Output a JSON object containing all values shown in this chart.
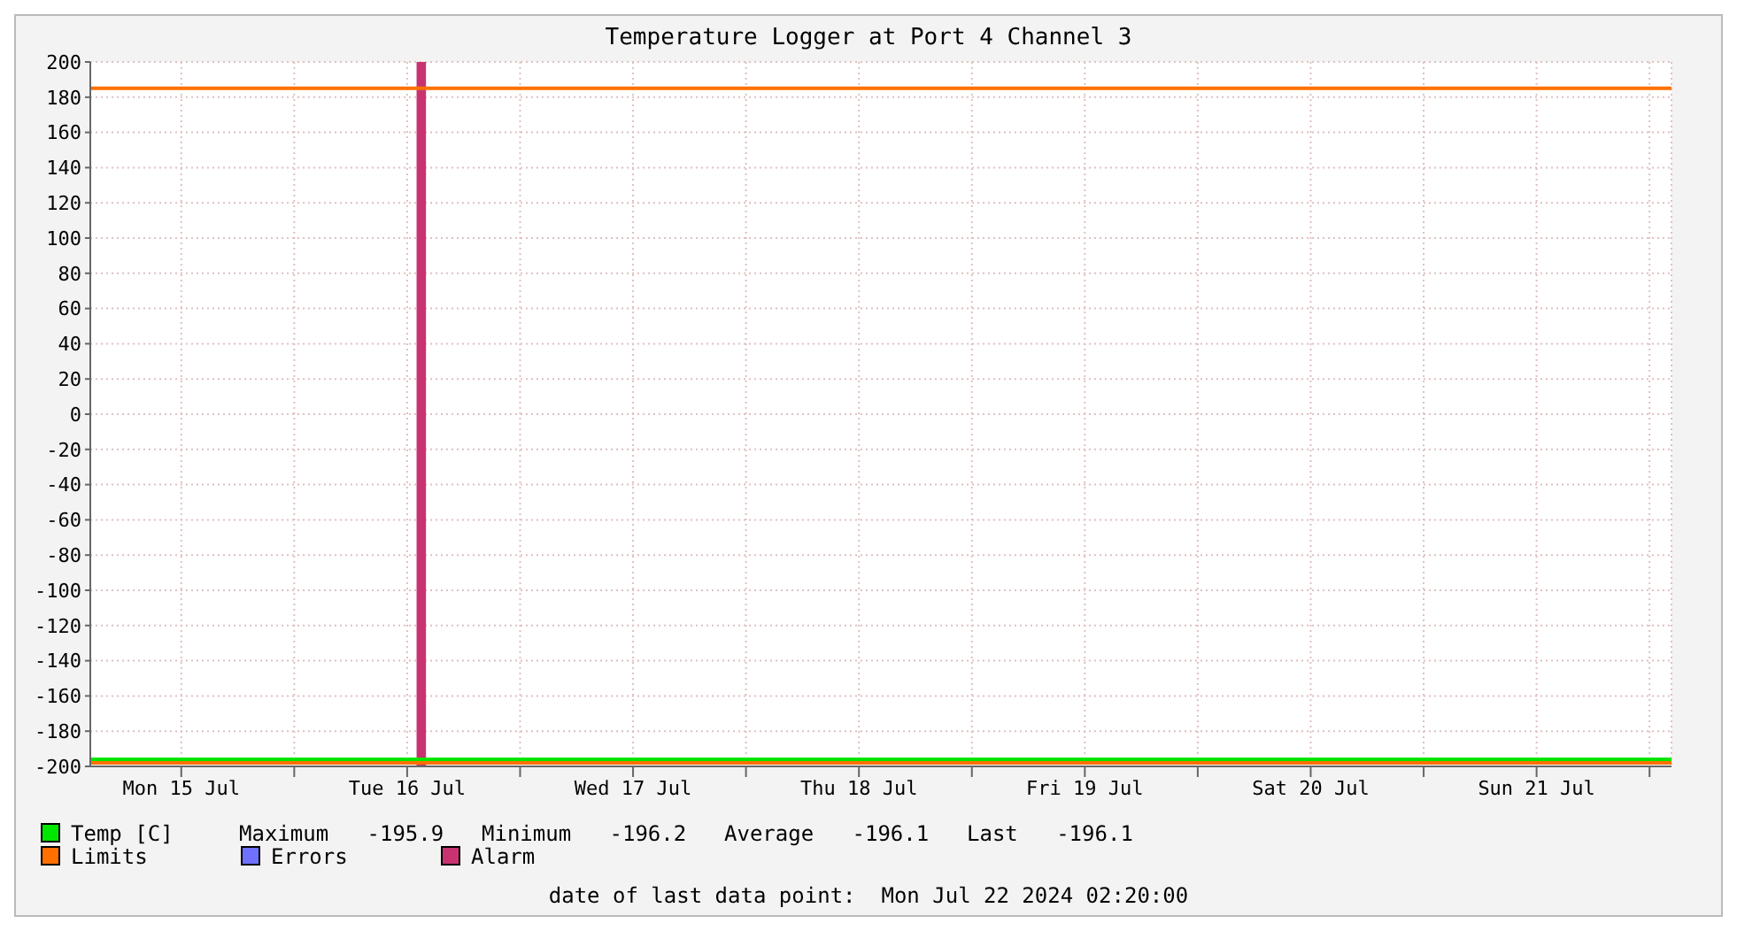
{
  "chart_data": {
    "type": "line",
    "title": "Temperature Logger at Port 4 Channel 3",
    "xlim": [
      "2024-07-15T02:20",
      "2024-07-22T02:20"
    ],
    "xticks": [
      {
        "value": "2024-07-15T12:00",
        "label": "Mon 15 Jul"
      },
      {
        "value": "2024-07-16T00:00",
        "label": null
      },
      {
        "value": "2024-07-16T12:00",
        "label": "Tue 16 Jul"
      },
      {
        "value": "2024-07-17T00:00",
        "label": null
      },
      {
        "value": "2024-07-17T12:00",
        "label": "Wed 17 Jul"
      },
      {
        "value": "2024-07-18T00:00",
        "label": null
      },
      {
        "value": "2024-07-18T12:00",
        "label": "Thu 18 Jul"
      },
      {
        "value": "2024-07-19T00:00",
        "label": null
      },
      {
        "value": "2024-07-19T12:00",
        "label": "Fri 19 Jul"
      },
      {
        "value": "2024-07-20T00:00",
        "label": null
      },
      {
        "value": "2024-07-20T12:00",
        "label": "Sat 20 Jul"
      },
      {
        "value": "2024-07-21T00:00",
        "label": null
      },
      {
        "value": "2024-07-21T12:00",
        "label": "Sun 21 Jul"
      },
      {
        "value": "2024-07-22T00:00",
        "label": null
      }
    ],
    "ylim": [
      -200,
      200
    ],
    "yticks": [
      -200,
      -180,
      -160,
      -140,
      -120,
      -100,
      -80,
      -60,
      -40,
      -20,
      0,
      20,
      40,
      60,
      80,
      100,
      120,
      140,
      160,
      180,
      200
    ],
    "grid": true,
    "legend": "bottom left",
    "marker": "none",
    "series": [
      {
        "name": "Temp [C]",
        "color": "#00e600",
        "x": [
          "2024-07-15T02:20",
          "2024-07-16T02:20",
          "2024-07-17T02:20",
          "2024-07-18T02:20",
          "2024-07-19T02:20",
          "2024-07-20T02:20",
          "2024-07-21T02:20",
          "2024-07-22T02:20"
        ],
        "values": [
          -196,
          -196,
          -196,
          -196,
          -196,
          -196,
          -196,
          -196
        ]
      },
      {
        "name": "Errors",
        "color": "#7070ff"
      }
    ],
    "ref_lines": [
      {
        "axis": "y",
        "value": 185,
        "label": "Limits",
        "color": "#ff7000"
      },
      {
        "axis": "y",
        "value": -198,
        "color": "#ff7000"
      }
    ],
    "bands": [
      {
        "axis": "x",
        "from": "2024-07-16T13:00",
        "to": "2024-07-16T14:00",
        "label": "Alarm",
        "color": "#c8336f"
      }
    ],
    "annotations": [
      "Maximum   -195.9",
      "Minimum   -196.2",
      "Average   -196.1",
      "Last   -196.1",
      "date of last data point:  Mon Jul 22 2024 02:20:00"
    ]
  }
}
